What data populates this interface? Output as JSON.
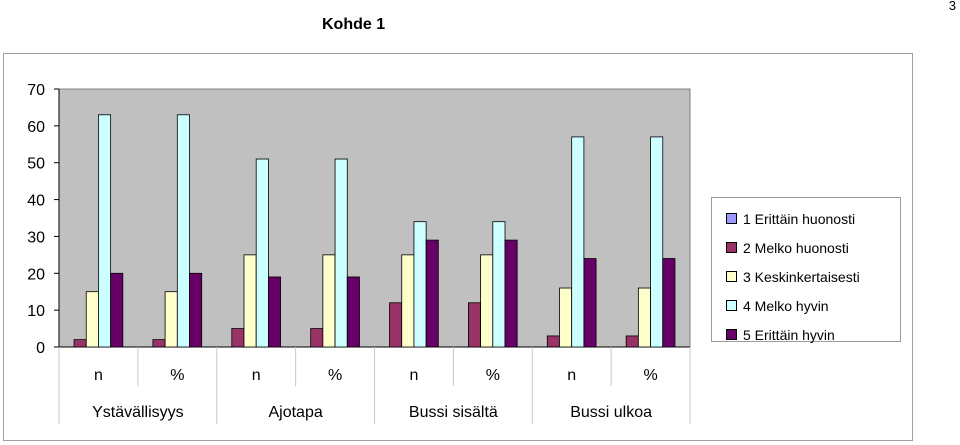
{
  "page": {
    "number": "3"
  },
  "chart_data": {
    "type": "bar",
    "title": "Kohde 1",
    "xlabel": "",
    "ylabel": "",
    "ylim": [
      0,
      70
    ],
    "yticks": [
      0,
      10,
      20,
      30,
      40,
      50,
      60,
      70
    ],
    "grid": false,
    "legend_position": "right",
    "categories": [
      "n",
      "%",
      "n",
      "%",
      "n",
      "%",
      "n",
      "%"
    ],
    "groups": [
      "Ystävällisyys",
      "Ajotapa",
      "Bussi sisältä",
      "Bussi ulkoa"
    ],
    "series": [
      {
        "name": "1 Erittäin huonosti",
        "color": "#9999ff",
        "values": [
          0,
          0,
          0,
          0,
          0,
          0,
          0,
          0
        ]
      },
      {
        "name": "2 Melko huonosti",
        "color": "#993366",
        "values": [
          2,
          2,
          5,
          5,
          12,
          12,
          3,
          3
        ]
      },
      {
        "name": "3 Keskinkertaisesti",
        "color": "#ffffcc",
        "values": [
          15,
          15,
          25,
          25,
          25,
          25,
          16,
          16
        ]
      },
      {
        "name": "4 Melko hyvin",
        "color": "#ccffff",
        "values": [
          63,
          63,
          51,
          51,
          34,
          34,
          57,
          57
        ]
      },
      {
        "name": "5 Erittäin hyvin",
        "color": "#660066",
        "values": [
          20,
          20,
          19,
          19,
          29,
          29,
          24,
          24
        ]
      }
    ],
    "plot_background": "#c0c0c0"
  }
}
